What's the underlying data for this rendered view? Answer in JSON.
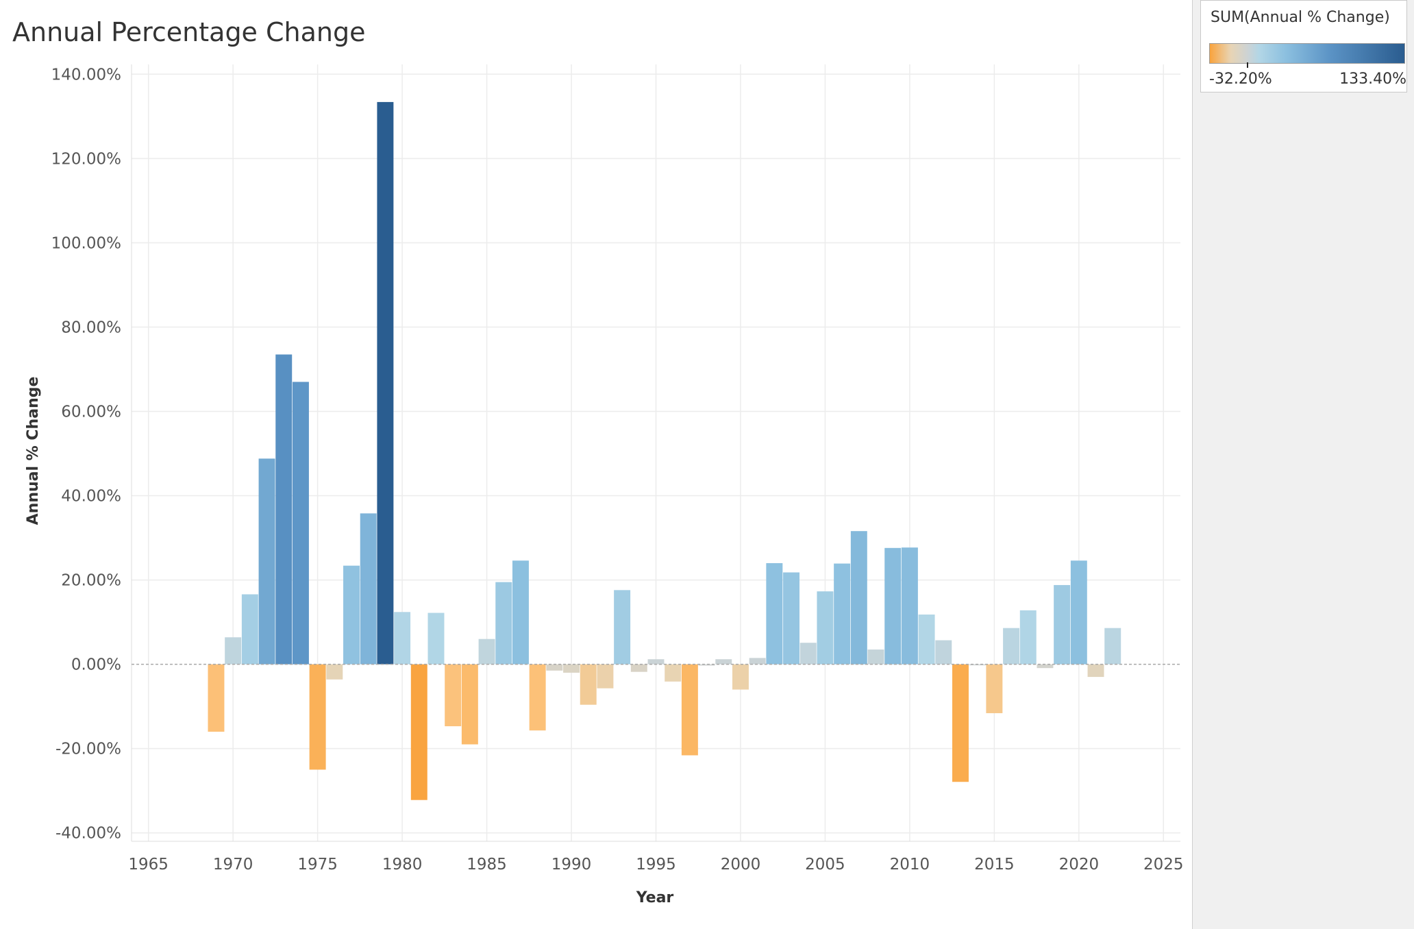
{
  "chart_data": {
    "type": "bar",
    "title": "Annual Percentage Change",
    "xlabel": "Year",
    "ylabel": "Annual % Change",
    "xlim": [
      1964,
      2026
    ],
    "ylim": [
      -42,
      142
    ],
    "x_ticks": [
      1965,
      1970,
      1975,
      1980,
      1985,
      1990,
      1995,
      2000,
      2005,
      2010,
      2015,
      2020,
      2025
    ],
    "y_ticks": [
      -40,
      -20,
      0,
      20,
      40,
      60,
      80,
      100,
      120,
      140
    ],
    "y_tick_labels": [
      "-40.00%",
      "-20.00%",
      "0.00%",
      "20.00%",
      "40.00%",
      "60.00%",
      "80.00%",
      "100.00%",
      "120.00%",
      "140.00%"
    ],
    "grid": true,
    "x": [
      1969,
      1970,
      1971,
      1972,
      1973,
      1974,
      1975,
      1976,
      1977,
      1978,
      1979,
      1980,
      1981,
      1982,
      1983,
      1984,
      1985,
      1986,
      1987,
      1988,
      1989,
      1990,
      1991,
      1992,
      1993,
      1994,
      1995,
      1996,
      1997,
      1998,
      1999,
      2000,
      2001,
      2002,
      2003,
      2004,
      2005,
      2006,
      2007,
      2008,
      2009,
      2010,
      2011,
      2012,
      2013,
      2014,
      2015,
      2016,
      2017,
      2018,
      2019,
      2020,
      2021,
      2022
    ],
    "values": [
      -16.0,
      6.4,
      16.6,
      48.8,
      73.5,
      67.0,
      -25.0,
      -3.6,
      23.4,
      35.8,
      133.4,
      12.4,
      -32.2,
      12.2,
      -14.7,
      -19.0,
      6.0,
      19.5,
      24.6,
      -15.7,
      -1.5,
      -2.0,
      -9.6,
      -5.7,
      17.6,
      -1.8,
      1.2,
      -4.1,
      -21.6,
      -0.3,
      1.2,
      -6.0,
      1.5,
      24.0,
      21.8,
      5.1,
      17.3,
      23.9,
      31.6,
      3.5,
      27.6,
      27.7,
      11.8,
      5.7,
      -27.9,
      -0.2,
      -11.6,
      8.6,
      12.8,
      -0.9,
      18.8,
      24.6,
      -3.0,
      8.6
    ],
    "legend": {
      "title": "SUM(Annual % Change)",
      "min_label": "-32.20%",
      "max_label": "133.40%",
      "min": -32.2,
      "max": 133.4,
      "placement": "top-right"
    },
    "colors": {
      "negative_max": "#f9a33d",
      "neutral_warm": "#e8d4b4",
      "neutral": "#cdd3d4",
      "neutral_cool": "#b2d6e6",
      "positive_mid": "#8bbfdf",
      "positive_high": "#5b93c5",
      "positive_max": "#2a5c8f"
    }
  }
}
